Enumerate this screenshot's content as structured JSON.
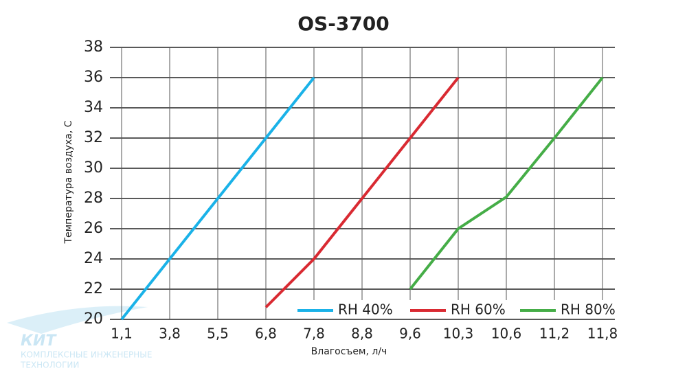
{
  "chart_data": {
    "type": "line",
    "title": "OS-3700",
    "x_label": "Влагосъем, л/ч",
    "y_label": "Температура воздуха, С",
    "categories": [
      "1,1",
      "3,8",
      "5,5",
      "6,8",
      "7,8",
      "8,8",
      "9,6",
      "10,3",
      "10,6",
      "11,2",
      "11,8"
    ],
    "series": [
      {
        "name": "RH 40%",
        "color": "#1ab2e8",
        "values": [
          20,
          24,
          28,
          32,
          36,
          null,
          null,
          null,
          null,
          null,
          null
        ]
      },
      {
        "name": "RH 60%",
        "color": "#d92a32",
        "values": [
          null,
          null,
          null,
          20.8,
          24,
          28,
          32,
          36,
          null,
          null,
          null
        ]
      },
      {
        "name": "RH 80%",
        "color": "#45ad47",
        "values": [
          null,
          null,
          null,
          null,
          null,
          null,
          22,
          26,
          28.1,
          32,
          36
        ]
      }
    ],
    "ylim": [
      20,
      38
    ],
    "yticks": [
      20,
      22,
      24,
      26,
      28,
      30,
      32,
      34,
      36,
      38
    ],
    "grid": true,
    "legend": "bottom-right",
    "logo": {
      "name": "КИТ",
      "subtitle": "КОМПЛЕКСНЫЕ ИНЖЕНЕРНЫЕ",
      "subtitle2": "ТЕХНОЛОГИИ"
    }
  }
}
